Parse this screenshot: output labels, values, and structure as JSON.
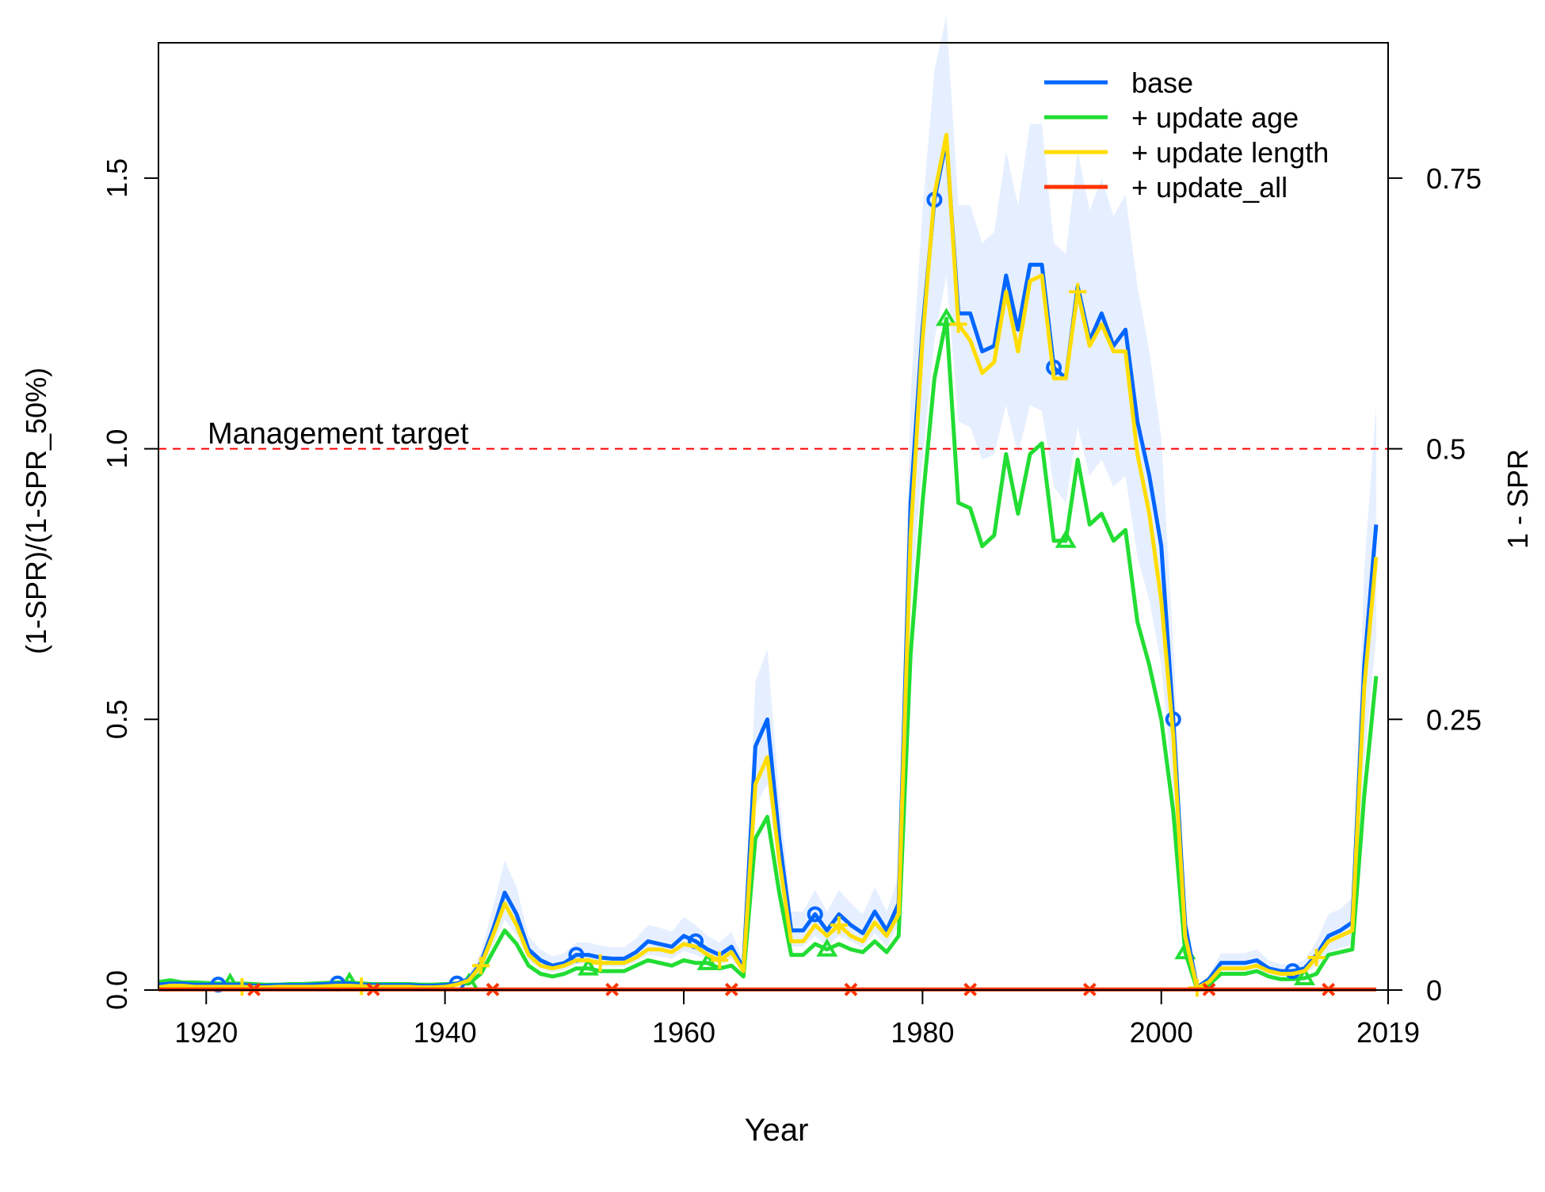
{
  "chart_data": {
    "type": "line",
    "xlabel": "Year",
    "ylabel": "(1-SPR)/(1-SPR_50%)",
    "y2label": "1 - SPR",
    "xlim": [
      1916,
      2019
    ],
    "ylim": [
      0,
      1.75
    ],
    "x_ticks": [
      1920,
      1940,
      1960,
      1980,
      2000,
      2019
    ],
    "y_ticks": [
      0.0,
      0.5,
      1.0,
      1.5
    ],
    "y_tick_labels": [
      "0.0",
      "0.5",
      "1.0",
      "1.5"
    ],
    "y2_ticks": [
      0,
      0.5,
      1.0,
      1.5
    ],
    "y2_tick_labels": [
      "0",
      "0.25",
      "0.5",
      "0.75"
    ],
    "grid": false,
    "legend_position": "top-right",
    "reference_line": {
      "y": 1.0,
      "label": "Management target",
      "color": "#ff0000",
      "style": "dashed"
    },
    "x": [
      1916,
      1917,
      1918,
      1919,
      1920,
      1921,
      1922,
      1923,
      1924,
      1925,
      1926,
      1927,
      1928,
      1929,
      1930,
      1931,
      1932,
      1933,
      1934,
      1935,
      1936,
      1937,
      1938,
      1939,
      1940,
      1941,
      1942,
      1943,
      1944,
      1945,
      1946,
      1947,
      1948,
      1949,
      1950,
      1951,
      1952,
      1953,
      1954,
      1955,
      1956,
      1957,
      1958,
      1959,
      1960,
      1961,
      1962,
      1963,
      1964,
      1965,
      1966,
      1967,
      1968,
      1969,
      1970,
      1971,
      1972,
      1973,
      1974,
      1975,
      1976,
      1977,
      1978,
      1979,
      1980,
      1981,
      1982,
      1983,
      1984,
      1985,
      1986,
      1987,
      1988,
      1989,
      1990,
      1991,
      1992,
      1993,
      1994,
      1995,
      1996,
      1997,
      1998,
      1999,
      2000,
      2001,
      2002,
      2003,
      2004,
      2005,
      2006,
      2007,
      2008,
      2009,
      2010,
      2011,
      2012,
      2013,
      2014,
      2015,
      2016,
      2017,
      2018
    ],
    "series": [
      {
        "name": "base",
        "color": "#0066ff",
        "marker": "circle",
        "values": [
          0.01,
          0.012,
          0.012,
          0.01,
          0.01,
          0.01,
          0.01,
          0.01,
          0.008,
          0.008,
          0.009,
          0.009,
          0.009,
          0.01,
          0.011,
          0.012,
          0.012,
          0.01,
          0.009,
          0.009,
          0.009,
          0.009,
          0.008,
          0.008,
          0.009,
          0.012,
          0.02,
          0.05,
          0.11,
          0.18,
          0.14,
          0.075,
          0.055,
          0.045,
          0.05,
          0.065,
          0.065,
          0.06,
          0.058,
          0.058,
          0.07,
          0.09,
          0.085,
          0.08,
          0.1,
          0.09,
          0.075,
          0.065,
          0.08,
          0.04,
          0.45,
          0.5,
          0.28,
          0.11,
          0.11,
          0.14,
          0.11,
          0.14,
          0.12,
          0.105,
          0.145,
          0.11,
          0.16,
          0.9,
          1.22,
          1.46,
          1.57,
          1.25,
          1.25,
          1.18,
          1.19,
          1.32,
          1.22,
          1.34,
          1.34,
          1.15,
          1.13,
          1.3,
          1.2,
          1.25,
          1.19,
          1.22,
          1.05,
          0.95,
          0.82,
          0.5,
          0.12,
          0.005,
          0.02,
          0.05,
          0.05,
          0.05,
          0.055,
          0.04,
          0.035,
          0.035,
          0.04,
          0.065,
          0.1,
          0.11,
          0.125,
          0.6,
          0.86
        ]
      },
      {
        "name": "+ update age",
        "color": "#22dd33",
        "marker": "triangle",
        "values": [
          0.015,
          0.018,
          0.014,
          0.014,
          0.013,
          0.012,
          0.012,
          0.012,
          0.011,
          0.01,
          0.01,
          0.011,
          0.011,
          0.012,
          0.013,
          0.014,
          0.014,
          0.012,
          0.011,
          0.011,
          0.011,
          0.011,
          0.01,
          0.01,
          0.011,
          0.012,
          0.012,
          0.03,
          0.07,
          0.11,
          0.085,
          0.045,
          0.03,
          0.025,
          0.03,
          0.04,
          0.04,
          0.035,
          0.035,
          0.035,
          0.045,
          0.055,
          0.05,
          0.045,
          0.055,
          0.05,
          0.05,
          0.04,
          0.045,
          0.025,
          0.28,
          0.32,
          0.18,
          0.065,
          0.065,
          0.085,
          0.075,
          0.085,
          0.075,
          0.07,
          0.09,
          0.07,
          0.1,
          0.62,
          0.9,
          1.13,
          1.24,
          0.9,
          0.89,
          0.82,
          0.84,
          0.99,
          0.88,
          0.99,
          1.01,
          0.83,
          0.83,
          0.98,
          0.86,
          0.88,
          0.83,
          0.85,
          0.68,
          0.6,
          0.5,
          0.33,
          0.07,
          0.002,
          0.01,
          0.03,
          0.03,
          0.03,
          0.035,
          0.025,
          0.02,
          0.02,
          0.022,
          0.03,
          0.065,
          0.07,
          0.075,
          0.36,
          0.58
        ]
      },
      {
        "name": " + update length",
        "color": "#ffdd00",
        "marker": "plus",
        "values": [
          0.005,
          0.008,
          0.008,
          0.006,
          0.006,
          0.006,
          0.006,
          0.006,
          0.005,
          0.005,
          0.006,
          0.006,
          0.006,
          0.006,
          0.007,
          0.008,
          0.008,
          0.007,
          0.006,
          0.006,
          0.006,
          0.006,
          0.005,
          0.005,
          0.006,
          0.01,
          0.018,
          0.045,
          0.1,
          0.16,
          0.12,
          0.065,
          0.045,
          0.04,
          0.045,
          0.055,
          0.055,
          0.05,
          0.05,
          0.05,
          0.06,
          0.075,
          0.075,
          0.07,
          0.085,
          0.08,
          0.065,
          0.055,
          0.07,
          0.035,
          0.38,
          0.43,
          0.24,
          0.09,
          0.09,
          0.12,
          0.1,
          0.12,
          0.1,
          0.09,
          0.125,
          0.1,
          0.14,
          0.84,
          1.2,
          1.47,
          1.58,
          1.23,
          1.2,
          1.14,
          1.16,
          1.29,
          1.18,
          1.31,
          1.32,
          1.13,
          1.13,
          1.29,
          1.19,
          1.23,
          1.18,
          1.18,
          0.99,
          0.88,
          0.72,
          0.47,
          0.1,
          0.004,
          0.015,
          0.04,
          0.04,
          0.04,
          0.045,
          0.035,
          0.03,
          0.03,
          0.035,
          0.06,
          0.09,
          0.1,
          0.11,
          0.56,
          0.8
        ]
      },
      {
        "name": " + update_all",
        "color": "#ff3300",
        "marker": "x",
        "values": [
          0.001,
          0.001,
          0.001,
          0.001,
          0.001,
          0.001,
          0.001,
          0.001,
          0.001,
          0.001,
          0.001,
          0.001,
          0.001,
          0.001,
          0.001,
          0.001,
          0.001,
          0.001,
          0.001,
          0.001,
          0.001,
          0.001,
          0.001,
          0.001,
          0.001,
          0.001,
          0.001,
          0.001,
          0.001,
          0.001,
          0.001,
          0.001,
          0.001,
          0.001,
          0.001,
          0.001,
          0.001,
          0.001,
          0.001,
          0.001,
          0.001,
          0.001,
          0.001,
          0.001,
          0.001,
          0.001,
          0.001,
          0.001,
          0.001,
          0.001,
          0.001,
          0.001,
          0.001,
          0.001,
          0.001,
          0.001,
          0.001,
          0.001,
          0.001,
          0.001,
          0.001,
          0.001,
          0.001,
          0.001,
          0.001,
          0.001,
          0.001,
          0.001,
          0.001,
          0.001,
          0.001,
          0.001,
          0.001,
          0.001,
          0.001,
          0.001,
          0.001,
          0.001,
          0.001,
          0.001,
          0.001,
          0.001,
          0.001,
          0.001,
          0.001,
          0.001,
          0.001,
          0.001,
          0.001,
          0.001,
          0.001,
          0.001,
          0.001,
          0.001,
          0.001,
          0.001,
          0.001,
          0.001,
          0.001,
          0.001,
          0.001,
          0.001,
          0.001
        ]
      }
    ],
    "uncertainty_band": {
      "series": "base",
      "color": "#e6efff",
      "lower": [
        0.006,
        0.008,
        0.008,
        0.006,
        0.006,
        0.006,
        0.006,
        0.006,
        0.005,
        0.005,
        0.006,
        0.006,
        0.006,
        0.006,
        0.007,
        0.008,
        0.008,
        0.007,
        0.006,
        0.006,
        0.006,
        0.006,
        0.005,
        0.005,
        0.006,
        0.008,
        0.014,
        0.035,
        0.08,
        0.13,
        0.1,
        0.055,
        0.04,
        0.033,
        0.037,
        0.048,
        0.048,
        0.044,
        0.043,
        0.043,
        0.052,
        0.065,
        0.062,
        0.058,
        0.072,
        0.065,
        0.055,
        0.048,
        0.058,
        0.03,
        0.34,
        0.38,
        0.21,
        0.08,
        0.08,
        0.1,
        0.08,
        0.1,
        0.09,
        0.078,
        0.105,
        0.08,
        0.12,
        0.7,
        0.98,
        1.2,
        1.32,
        1.05,
        1.04,
        0.98,
        0.99,
        1.08,
        0.99,
        1.08,
        1.07,
        0.93,
        0.9,
        1.04,
        0.95,
        0.98,
        0.93,
        0.95,
        0.8,
        0.72,
        0.6,
        0.36,
        0.08,
        0.003,
        0.014,
        0.035,
        0.035,
        0.035,
        0.04,
        0.028,
        0.025,
        0.025,
        0.028,
        0.045,
        0.07,
        0.078,
        0.085,
        0.42,
        0.65
      ],
      "upper": [
        0.014,
        0.016,
        0.016,
        0.014,
        0.014,
        0.014,
        0.014,
        0.014,
        0.011,
        0.011,
        0.012,
        0.012,
        0.012,
        0.014,
        0.015,
        0.016,
        0.016,
        0.014,
        0.012,
        0.012,
        0.012,
        0.012,
        0.011,
        0.011,
        0.012,
        0.016,
        0.028,
        0.07,
        0.15,
        0.24,
        0.19,
        0.1,
        0.075,
        0.062,
        0.068,
        0.088,
        0.088,
        0.082,
        0.079,
        0.079,
        0.095,
        0.12,
        0.115,
        0.108,
        0.135,
        0.12,
        0.1,
        0.088,
        0.108,
        0.055,
        0.57,
        0.63,
        0.36,
        0.145,
        0.145,
        0.185,
        0.145,
        0.185,
        0.16,
        0.14,
        0.19,
        0.145,
        0.21,
        1.1,
        1.44,
        1.7,
        1.8,
        1.45,
        1.45,
        1.38,
        1.4,
        1.55,
        1.45,
        1.6,
        1.6,
        1.38,
        1.36,
        1.55,
        1.44,
        1.5,
        1.43,
        1.47,
        1.3,
        1.18,
        1.02,
        0.64,
        0.16,
        0.008,
        0.028,
        0.068,
        0.068,
        0.068,
        0.075,
        0.055,
        0.048,
        0.048,
        0.055,
        0.09,
        0.14,
        0.15,
        0.17,
        0.78,
        1.08
      ]
    }
  }
}
